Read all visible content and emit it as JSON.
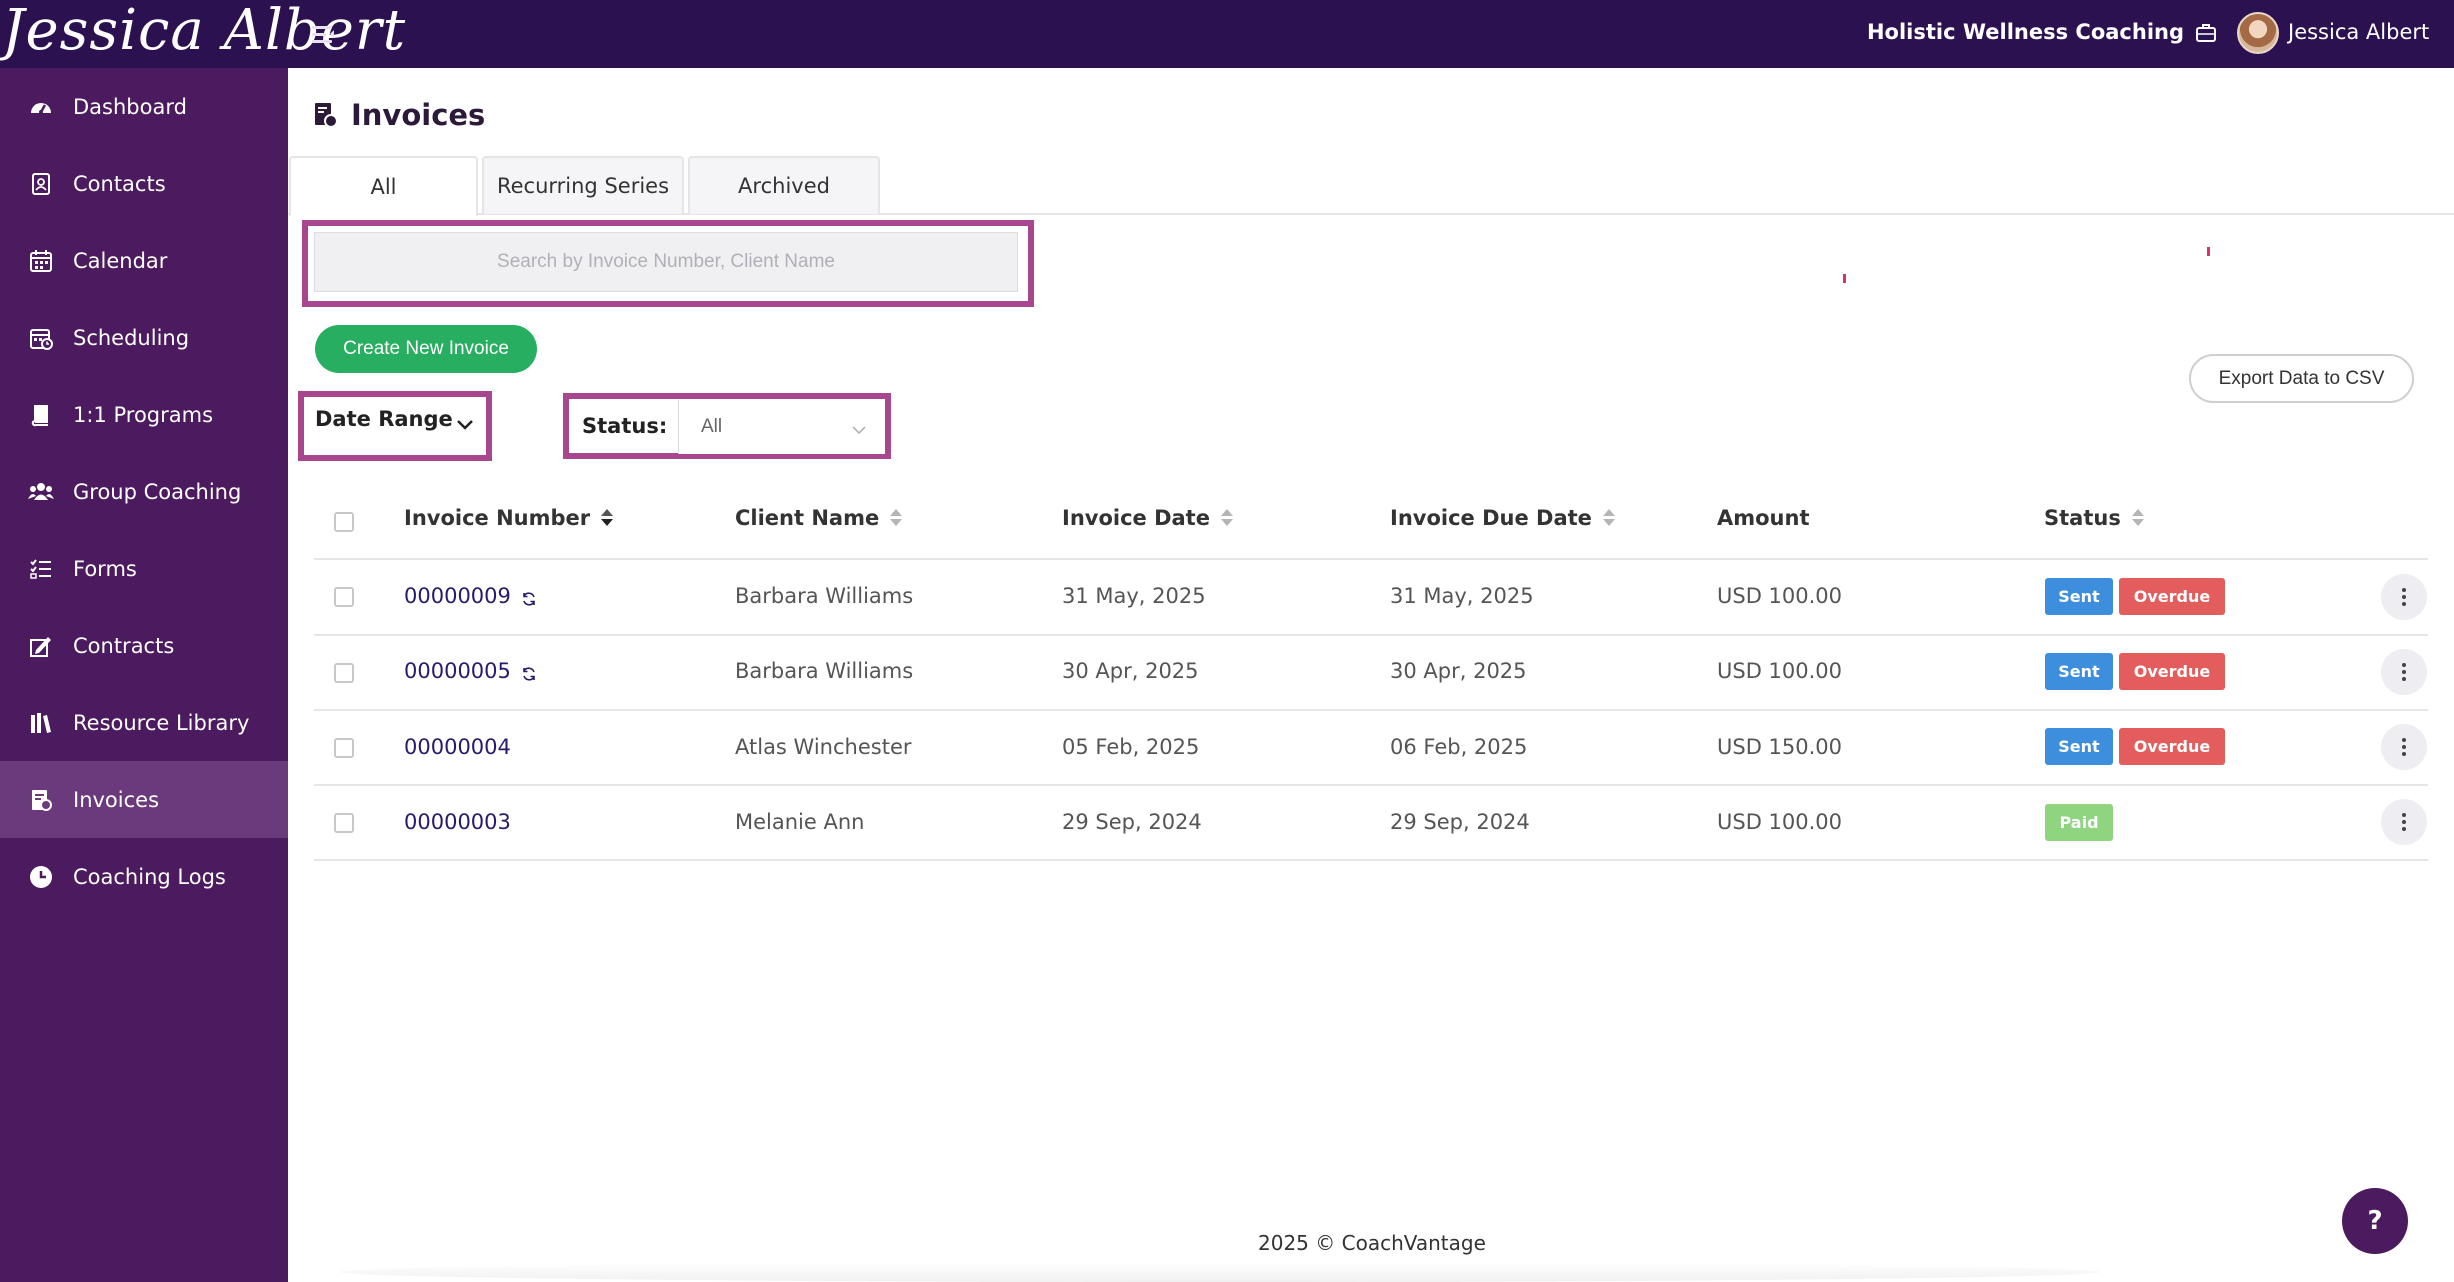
{
  "header": {
    "logo_text": "Jessica Albert",
    "brand_name": "Holistic Wellness Coaching",
    "user_name": "Jessica Albert"
  },
  "sidebar": {
    "items": [
      {
        "label": "Dashboard",
        "icon": "dashboard-icon"
      },
      {
        "label": "Contacts",
        "icon": "contacts-icon"
      },
      {
        "label": "Calendar",
        "icon": "calendar-icon"
      },
      {
        "label": "Scheduling",
        "icon": "scheduling-icon"
      },
      {
        "label": "1:1 Programs",
        "icon": "book-icon"
      },
      {
        "label": "Group Coaching",
        "icon": "group-icon"
      },
      {
        "label": "Forms",
        "icon": "forms-icon"
      },
      {
        "label": "Contracts",
        "icon": "contract-icon"
      },
      {
        "label": "Resource Library",
        "icon": "library-icon"
      },
      {
        "label": "Invoices",
        "icon": "invoice-icon",
        "active": true
      },
      {
        "label": "Coaching Logs",
        "icon": "clock-icon"
      }
    ]
  },
  "page": {
    "title": "Invoices",
    "tabs": [
      "All",
      "Recurring Series",
      "Archived"
    ],
    "active_tab": "All"
  },
  "search": {
    "placeholder": "Search by Invoice Number, Client Name"
  },
  "actions": {
    "create_label": "Create New Invoice",
    "export_label": "Export Data to CSV"
  },
  "filters": {
    "date_range_label": "Date Range",
    "status_label": "Status:",
    "status_value": "All"
  },
  "table": {
    "headers": {
      "invoice_number": "Invoice Number",
      "client_name": "Client Name",
      "invoice_date": "Invoice Date",
      "due_date": "Invoice Due Date",
      "amount": "Amount",
      "status": "Status"
    },
    "rows": [
      {
        "number": "00000009",
        "recurring": true,
        "client": "Barbara Williams",
        "date": "31 May, 2025",
        "due": "31 May, 2025",
        "amount": "USD 100.00",
        "badges": [
          "Sent",
          "Overdue"
        ]
      },
      {
        "number": "00000005",
        "recurring": true,
        "client": "Barbara Williams",
        "date": "30 Apr, 2025",
        "due": "30 Apr, 2025",
        "amount": "USD 100.00",
        "badges": [
          "Sent",
          "Overdue"
        ]
      },
      {
        "number": "00000004",
        "recurring": false,
        "client": "Atlas Winchester",
        "date": "05 Feb, 2025",
        "due": "06 Feb, 2025",
        "amount": "USD 150.00",
        "badges": [
          "Sent",
          "Overdue"
        ]
      },
      {
        "number": "00000003",
        "recurring": false,
        "client": "Melanie Ann",
        "date": "29 Sep, 2024",
        "due": "29 Sep, 2024",
        "amount": "USD 100.00",
        "badges": [
          "Paid"
        ]
      }
    ]
  },
  "badge_colors": {
    "Sent": "#3d8fde",
    "Overdue": "#e35d5d",
    "Paid": "#8fd47f"
  },
  "footer": {
    "text": "2025 © CoachVantage"
  },
  "help": {
    "label": "?"
  },
  "colors": {
    "topbar": "#2b1150",
    "sidebar": "#4c1a5e",
    "highlight": "#a8478f",
    "create_button": "#27ae60"
  }
}
